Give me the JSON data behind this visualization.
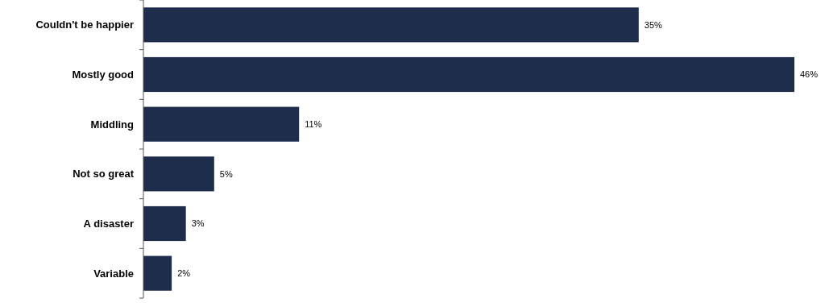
{
  "chart_data": {
    "type": "bar",
    "orientation": "horizontal",
    "categories": [
      "Couldn't be happier",
      "Mostly good",
      "Middling",
      "Not so great",
      "A disaster",
      "Variable"
    ],
    "values": [
      35,
      46,
      11,
      5,
      3,
      2
    ],
    "value_labels": [
      "35%",
      "46%",
      "11%",
      "5%",
      "3%",
      "2%"
    ],
    "color": "#1f2d4d"
  }
}
